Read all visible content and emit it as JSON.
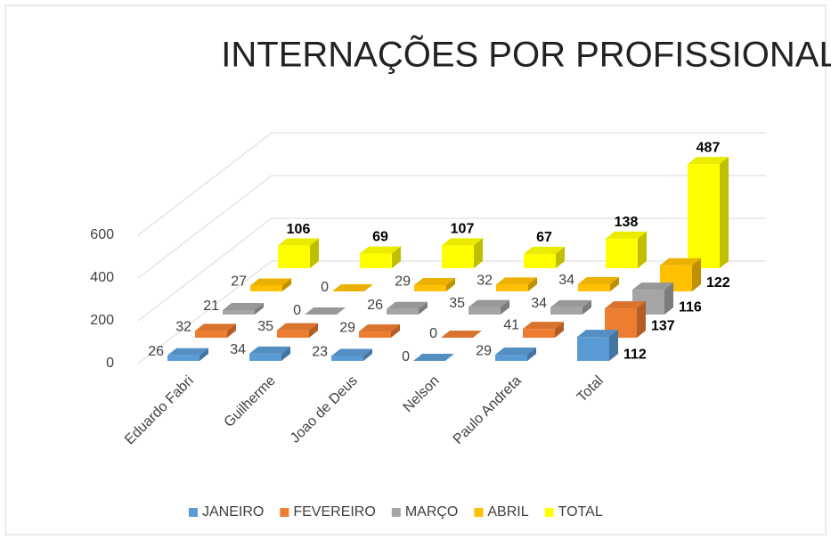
{
  "chart_data": {
    "type": "bar3d",
    "title": "INTERNAÇÕES POR PROFISSIONAL",
    "categories": [
      "Eduardo Fabri",
      "Guilherme",
      "Joao de Deus",
      "Nelson",
      "Paulo Andreta",
      "Total"
    ],
    "series": [
      {
        "name": "JANEIRO",
        "color": "#5b9bd5",
        "values": [
          26,
          34,
          23,
          0,
          29,
          112
        ]
      },
      {
        "name": "FEVEREIRO",
        "color": "#ed7d31",
        "values": [
          32,
          35,
          29,
          0,
          41,
          137
        ]
      },
      {
        "name": "MARÇO",
        "color": "#a5a5a5",
        "values": [
          21,
          0,
          26,
          35,
          34,
          116
        ]
      },
      {
        "name": "ABRIL",
        "color": "#ffc000",
        "values": [
          27,
          0,
          29,
          32,
          34,
          122
        ]
      },
      {
        "name": "TOTAL",
        "color": "#ffff00",
        "values": [
          106,
          69,
          107,
          67,
          138,
          487
        ]
      }
    ],
    "ylim": [
      0,
      600
    ],
    "yticks": [
      0,
      200,
      400,
      600
    ],
    "grid": true,
    "legend": "bottom"
  }
}
